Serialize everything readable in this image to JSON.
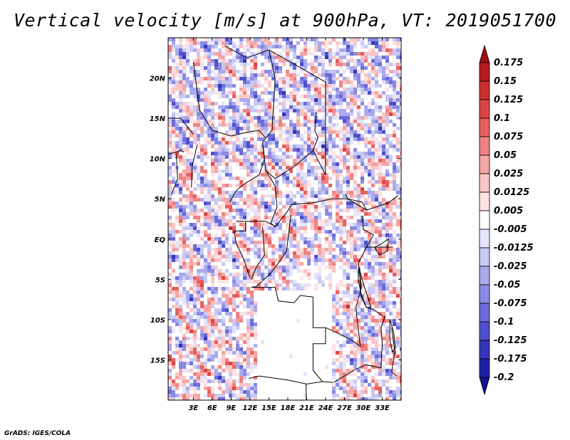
{
  "title": "Vertical velocity [m/s] at 900hPa, VT: 2019051700",
  "credit": "GrADS: IGES/COLA",
  "map": {
    "lon_range": [
      -1,
      36
    ],
    "lat_range": [
      -20,
      25
    ],
    "lon_ticks": [
      "3E",
      "6E",
      "9E",
      "12E",
      "15E",
      "18E",
      "21E",
      "24E",
      "27E",
      "30E",
      "33E"
    ],
    "lat_ticks": [
      "20N",
      "15N",
      "10N",
      "5N",
      "EQ",
      "5S",
      "10S",
      "15S"
    ],
    "colors": {
      "positive": "#d62b2b",
      "negative": "#4a4ad6",
      "near_zero": "#ffffff",
      "borders": "#000000"
    }
  },
  "colorbar": {
    "labels": [
      "0.175",
      "0.15",
      "0.125",
      "0.1",
      "0.075",
      "0.05",
      "0.025",
      "0.0125",
      "0.005",
      "-0.005",
      "-0.0125",
      "-0.025",
      "-0.05",
      "-0.075",
      "-0.1",
      "-0.125",
      "-0.175",
      "-0.2"
    ],
    "colors": [
      "#a00f0f",
      "#b81d1d",
      "#cc2e2e",
      "#dc4444",
      "#e66060",
      "#ee8383",
      "#f4a5a5",
      "#f9c6c6",
      "#fde4e4",
      "#ffffff",
      "#e4e4fb",
      "#c8c8f4",
      "#a9a9ec",
      "#8a8ae3",
      "#6b6bd9",
      "#4f4fcc",
      "#3535ba",
      "#2020a6",
      "#12128e"
    ]
  }
}
